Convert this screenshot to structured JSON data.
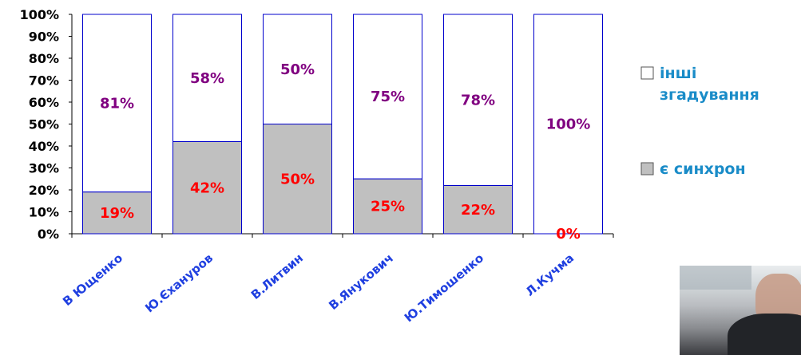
{
  "chart_data": {
    "type": "bar",
    "stacked": true,
    "percent": true,
    "categories": [
      "В Ющенко",
      "Ю.Єханyров",
      "В.Литвин",
      "В.Янукович",
      "Ю.Тимошенко",
      "Л.Кучма"
    ],
    "series": [
      {
        "name": "є синхрон",
        "values": [
          19,
          42,
          50,
          25,
          22,
          0
        ],
        "labels": [
          "19%",
          "42%",
          "50%",
          "25%",
          "22%",
          "0%"
        ],
        "color": "#c0c0c0",
        "label_color": "#ff0000"
      },
      {
        "name": "інші згадування",
        "values": [
          81,
          58,
          50,
          75,
          78,
          100
        ],
        "labels": [
          "81%",
          "58%",
          "50%",
          "75%",
          "78%",
          "100%"
        ],
        "color": "#ffffff",
        "label_color": "#800080"
      }
    ],
    "y_ticks": [
      "0%",
      "10%",
      "20%",
      "30%",
      "40%",
      "50%",
      "60%",
      "70%",
      "80%",
      "90%",
      "100%"
    ],
    "ylim": [
      0,
      100
    ],
    "grid": false,
    "legend_position": "right",
    "bar_border_color": "#0000cc",
    "category_label_color": "#1f3fe0",
    "legend_text_color": "#1a8cc8"
  },
  "legend": {
    "items": [
      {
        "lines": [
          "інші",
          "згадування"
        ],
        "swatch": "#ffffff"
      },
      {
        "lines": [
          "є синхрон"
        ],
        "swatch": "#c0c0c0"
      }
    ]
  },
  "photo": {
    "icon": "person-photo"
  }
}
